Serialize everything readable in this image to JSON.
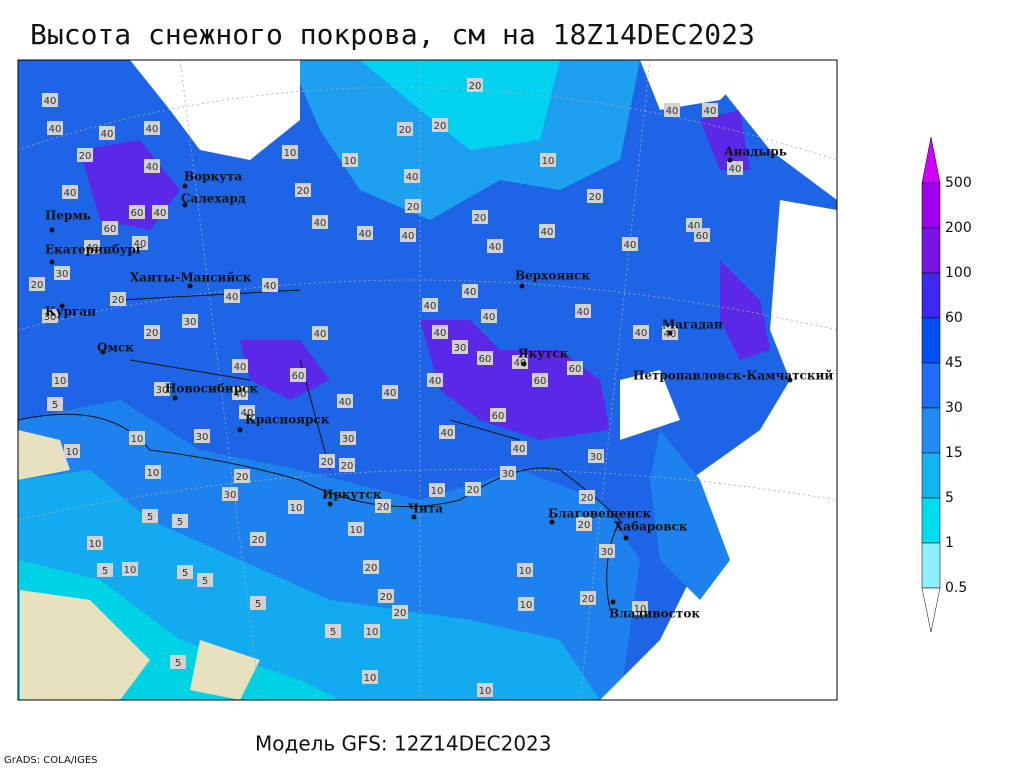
{
  "title": "Высота снежного покрова, см на 18Z14DEC2023",
  "subtitle": "Модель GFS: 12Z14DEC2023",
  "credit": "GrADS: COLA/IGES",
  "cities": [
    "Воркута",
    "Салехард",
    "Пермь",
    "Екатеринбург",
    "Ханты-Мансийск",
    "Курган",
    "Омск",
    "Новосибирск",
    "Красноярск",
    "Иркутск",
    "Чита",
    "Верхоянск",
    "Якутск",
    "Магадан",
    "Петропавловск-Камчатский",
    "Анадырь",
    "Благовещенск",
    "Хабаровск",
    "Владивосток"
  ],
  "contour_labels": [
    40,
    40,
    40,
    40,
    20,
    40,
    40,
    60,
    40,
    60,
    40,
    40,
    30,
    20,
    20,
    40,
    30,
    20,
    30,
    10,
    5,
    30,
    40,
    40,
    40,
    60,
    30,
    10,
    10,
    10,
    20,
    30,
    5,
    5,
    10,
    5,
    10,
    5,
    5,
    20,
    5,
    5,
    10,
    20,
    20,
    30,
    40,
    40,
    40,
    40,
    40,
    40,
    40,
    40,
    40,
    30,
    40,
    40,
    40,
    60,
    60,
    40,
    60,
    60,
    40,
    30,
    40,
    20,
    10,
    20,
    10,
    20,
    20,
    20,
    5,
    10,
    10,
    10,
    10,
    10,
    20,
    20,
    20,
    30,
    30,
    40,
    40,
    40,
    40,
    40,
    20,
    20,
    20,
    20,
    20,
    10,
    10,
    10,
    20,
    40,
    40,
    40,
    40,
    60,
    40,
    10,
    20,
    40
  ],
  "legend": {
    "levels": [
      500,
      200,
      100,
      60,
      45,
      30,
      15,
      5,
      1,
      0.5
    ],
    "colors": [
      "#d200ff",
      "#a000f0",
      "#7814e6",
      "#3c28f0",
      "#0050f5",
      "#1e6ef5",
      "#1e8cf0",
      "#14b4f0",
      "#00dcf0",
      "#8cf0fa",
      "#ffffff"
    ]
  }
}
